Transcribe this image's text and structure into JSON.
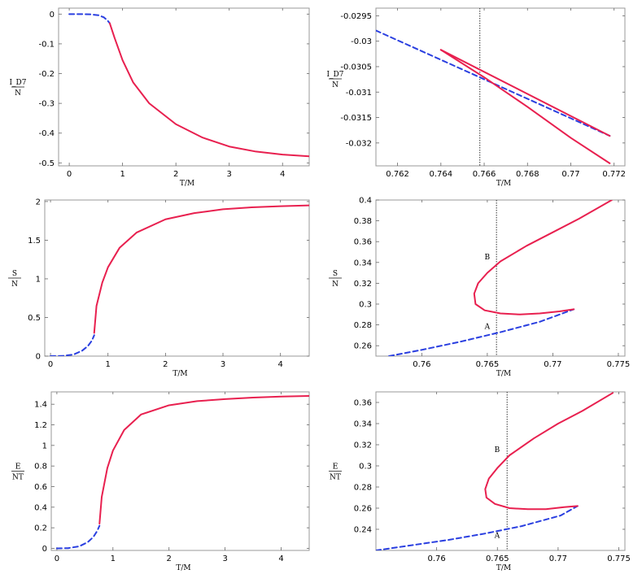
{
  "colors": {
    "solid": "#e8204f",
    "dashed": "#2a3fe0",
    "frame": "#999999",
    "vline": "#333333"
  },
  "chart_data": [
    {
      "type": "line",
      "xlabel": "T/M",
      "ylabel_num": "I_D7",
      "ylabel_den": "N",
      "xlim": [
        -0.2,
        4.5
      ],
      "ylim": [
        -0.51,
        0.02
      ],
      "xticks": [
        0,
        1,
        2,
        3,
        4
      ],
      "xtick_labels": [
        "0",
        "1",
        "2",
        "3",
        "4"
      ],
      "yticks": [
        0,
        -0.1,
        -0.2,
        -0.3,
        -0.4,
        -0.5
      ],
      "ytick_labels": [
        "0",
        "-0.1",
        "-0.2",
        "-0.3",
        "-0.4",
        "-0.5"
      ],
      "series": [
        {
          "style": "dashed",
          "x": [
            0.0,
            0.2,
            0.4,
            0.55,
            0.65,
            0.72,
            0.76
          ],
          "y": [
            0.0,
            0.0,
            -0.001,
            -0.004,
            -0.011,
            -0.022,
            -0.031
          ]
        },
        {
          "style": "solid",
          "x": [
            0.76,
            0.85,
            1.0,
            1.2,
            1.5,
            2.0,
            2.5,
            3.0,
            3.5,
            4.0,
            4.5
          ],
          "y": [
            -0.031,
            -0.08,
            -0.155,
            -0.23,
            -0.3,
            -0.37,
            -0.415,
            -0.445,
            -0.462,
            -0.472,
            -0.478
          ]
        }
      ]
    },
    {
      "type": "line",
      "xlabel": "T/M",
      "ylabel_num": "I_D7",
      "ylabel_den": "N",
      "xlim": [
        0.761,
        0.7725
      ],
      "ylim": [
        -0.03245,
        -0.02935
      ],
      "xticks": [
        0.762,
        0.764,
        0.766,
        0.768,
        0.77,
        0.772
      ],
      "xtick_labels": [
        "0.762",
        "0.764",
        "0.766",
        "0.768",
        "0.77",
        "0.772"
      ],
      "yticks": [
        -0.0295,
        -0.03,
        -0.0305,
        -0.031,
        -0.0315,
        -0.032
      ],
      "ytick_labels": [
        "-0.0295",
        "-0.03",
        "-0.0305",
        "-0.031",
        "-0.0315",
        "-0.032"
      ],
      "vline": 0.7658,
      "series": [
        {
          "style": "dashed",
          "x": [
            0.761,
            0.7718
          ],
          "y": [
            -0.02979,
            -0.03186
          ]
        },
        {
          "style": "solid",
          "x": [
            0.764,
            0.7718
          ],
          "y": [
            -0.03017,
            -0.03186
          ]
        },
        {
          "style": "solid",
          "x": [
            0.764,
            0.766,
            0.768,
            0.77,
            0.7718
          ],
          "y": [
            -0.03017,
            -0.03071,
            -0.03129,
            -0.0319,
            -0.0324
          ]
        }
      ]
    },
    {
      "type": "line",
      "xlabel": "T/M",
      "ylabel_num": "S",
      "ylabel_den": "N",
      "xlim": [
        -0.1,
        4.5
      ],
      "ylim": [
        0,
        2.02
      ],
      "xticks": [
        0,
        1,
        2,
        3,
        4
      ],
      "xtick_labels": [
        "0",
        "1",
        "2",
        "3",
        "4"
      ],
      "yticks": [
        0,
        0.5,
        1,
        1.5,
        2
      ],
      "ytick_labels": [
        "0",
        "0.5",
        "1",
        "1.5",
        "2"
      ],
      "series": [
        {
          "style": "dashed",
          "x": [
            0.0,
            0.2,
            0.4,
            0.55,
            0.65,
            0.72,
            0.76
          ],
          "y": [
            0.0,
            0.002,
            0.02,
            0.07,
            0.13,
            0.2,
            0.27
          ]
        },
        {
          "style": "solid",
          "x": [
            0.76,
            0.8,
            0.9,
            1.0,
            1.2,
            1.5,
            2.0,
            2.5,
            3.0,
            3.5,
            4.0,
            4.5
          ],
          "y": [
            0.3,
            0.65,
            0.95,
            1.15,
            1.4,
            1.6,
            1.77,
            1.85,
            1.9,
            1.925,
            1.94,
            1.95
          ]
        }
      ]
    },
    {
      "type": "line",
      "xlabel": "T/M",
      "ylabel_num": "S",
      "ylabel_den": "N",
      "xlim": [
        0.7565,
        0.7755
      ],
      "ylim": [
        0.25,
        0.4
      ],
      "xticks": [
        0.76,
        0.765,
        0.77,
        0.775
      ],
      "xtick_labels": [
        "0.76",
        "0.765",
        "0.77",
        "0.775"
      ],
      "yticks": [
        0.26,
        0.28,
        0.3,
        0.32,
        0.34,
        0.36,
        0.38,
        0.4
      ],
      "ytick_labels": [
        "0.26",
        "0.28",
        "0.3",
        "0.32",
        "0.34",
        "0.36",
        "0.38",
        "0.4"
      ],
      "vline": 0.7657,
      "annotations": [
        {
          "text": "B",
          "x": 0.7652,
          "y": 0.343
        },
        {
          "text": "A",
          "x": 0.7652,
          "y": 0.276
        }
      ],
      "series": [
        {
          "style": "dashed",
          "x": [
            0.7575,
            0.76,
            0.763,
            0.766,
            0.769,
            0.7716
          ],
          "y": [
            0.25,
            0.256,
            0.264,
            0.273,
            0.283,
            0.295
          ]
        },
        {
          "style": "solid",
          "x": [
            0.7716,
            0.7705,
            0.769,
            0.7675,
            0.766,
            0.7648,
            0.7641,
            0.764,
            0.7643,
            0.765,
            0.766,
            0.768,
            0.77,
            0.772,
            0.7745
          ],
          "y": [
            0.295,
            0.293,
            0.291,
            0.29,
            0.291,
            0.294,
            0.3,
            0.31,
            0.32,
            0.33,
            0.341,
            0.356,
            0.369,
            0.382,
            0.4
          ]
        }
      ]
    },
    {
      "type": "line",
      "xlabel": "T/M",
      "ylabel_num": "E",
      "ylabel_den": "NT",
      "xlim": [
        -0.1,
        4.5
      ],
      "ylim": [
        -0.02,
        1.52
      ],
      "xticks": [
        0,
        1,
        2,
        3,
        4
      ],
      "xtick_labels": [
        "0",
        "1",
        "2",
        "3",
        "4"
      ],
      "yticks": [
        0,
        0.2,
        0.4,
        0.6,
        0.8,
        1,
        1.2,
        1.4
      ],
      "ytick_labels": [
        "0",
        "0.2",
        "0.4",
        "0.6",
        "0.8",
        "1",
        "1.2",
        "1.4"
      ],
      "series": [
        {
          "style": "dashed",
          "x": [
            0.0,
            0.2,
            0.4,
            0.55,
            0.65,
            0.72,
            0.76
          ],
          "y": [
            0.0,
            0.002,
            0.02,
            0.06,
            0.11,
            0.17,
            0.22
          ]
        },
        {
          "style": "solid",
          "x": [
            0.76,
            0.8,
            0.9,
            1.0,
            1.2,
            1.5,
            2.0,
            2.5,
            3.0,
            3.5,
            4.0,
            4.5
          ],
          "y": [
            0.24,
            0.5,
            0.78,
            0.95,
            1.15,
            1.3,
            1.39,
            1.43,
            1.45,
            1.465,
            1.475,
            1.48
          ]
        }
      ]
    },
    {
      "type": "line",
      "xlabel": "T/M",
      "ylabel_num": "E",
      "ylabel_den": "NT",
      "xlim": [
        0.755,
        0.7755
      ],
      "ylim": [
        0.22,
        0.37
      ],
      "xticks": [
        0.76,
        0.765,
        0.77,
        0.775
      ],
      "xtick_labels": [
        "0.76",
        "0.765",
        "0.77",
        "0.775"
      ],
      "yticks": [
        0.24,
        0.26,
        0.28,
        0.3,
        0.32,
        0.34,
        0.36
      ],
      "ytick_labels": [
        "0.24",
        "0.26",
        "0.28",
        "0.3",
        "0.32",
        "0.34",
        "0.36"
      ],
      "vline": 0.7658,
      "annotations": [
        {
          "text": "B",
          "x": 0.7652,
          "y": 0.313
        },
        {
          "text": "A",
          "x": 0.7652,
          "y": 0.232
        }
      ],
      "series": [
        {
          "style": "dashed",
          "x": [
            0.755,
            0.758,
            0.761,
            0.764,
            0.767,
            0.7702,
            0.7716
          ],
          "y": [
            0.22,
            0.225,
            0.23,
            0.236,
            0.243,
            0.253,
            0.262
          ]
        },
        {
          "style": "solid",
          "x": [
            0.7716,
            0.7705,
            0.769,
            0.7675,
            0.766,
            0.7648,
            0.7641,
            0.764,
            0.7643,
            0.765,
            0.766,
            0.768,
            0.77,
            0.772,
            0.7745
          ],
          "y": [
            0.262,
            0.261,
            0.259,
            0.259,
            0.26,
            0.264,
            0.27,
            0.278,
            0.288,
            0.298,
            0.31,
            0.326,
            0.34,
            0.352,
            0.369
          ]
        }
      ]
    }
  ]
}
